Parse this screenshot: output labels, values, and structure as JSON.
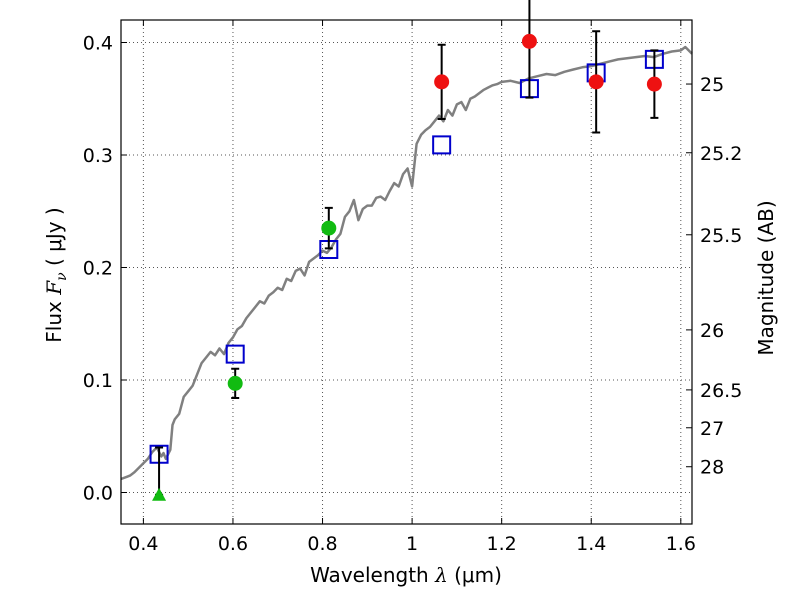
{
  "chart_data": {
    "type": "scatter",
    "xlabel": "Wavelength  λ (μm)",
    "ylabel": "Flux  F_ν ( μJy )",
    "ylabel_parts": {
      "prefix": "Flux  ",
      "symbol": "F",
      "subscript": "ν",
      "unit": " ( μJy )"
    },
    "xlabel_parts": {
      "prefix": "Wavelength  ",
      "symbol": "λ",
      "unit": " (μm)"
    },
    "y2label": "Magnitude (AB)",
    "xlim": [
      0.35,
      1.625
    ],
    "ylim": [
      -0.028,
      0.42
    ],
    "grid": true,
    "x_ticks": [
      {
        "value": 0.4,
        "label": "0.4"
      },
      {
        "value": 0.6,
        "label": "0.6"
      },
      {
        "value": 0.8,
        "label": "0.8"
      },
      {
        "value": 1.0,
        "label": "1"
      },
      {
        "value": 1.2,
        "label": "1.2"
      },
      {
        "value": 1.4,
        "label": "1.4"
      },
      {
        "value": 1.6,
        "label": "1.6"
      }
    ],
    "y_ticks": [
      {
        "value": 0.0,
        "label": "0.0"
      },
      {
        "value": 0.1,
        "label": "0.1"
      },
      {
        "value": 0.2,
        "label": "0.2"
      },
      {
        "value": 0.3,
        "label": "0.3"
      },
      {
        "value": 0.4,
        "label": "0.4"
      }
    ],
    "y2_ticks": [
      {
        "mag": 25,
        "label": "25"
      },
      {
        "mag": 25.2,
        "label": "25.2"
      },
      {
        "mag": 25.5,
        "label": "25.5"
      },
      {
        "mag": 26,
        "label": "26"
      },
      {
        "mag": 26.5,
        "label": "26.5"
      },
      {
        "mag": 27,
        "label": "27"
      },
      {
        "mag": 28,
        "label": "28"
      }
    ],
    "colors": {
      "template": "#808080",
      "model": "#0000cc",
      "red": "#ee1111",
      "green": "#11bb11",
      "grid": "#555555",
      "errorbar": "#000000"
    },
    "series": [
      {
        "name": "template spectrum",
        "kind": "line",
        "x": [
          0.35,
          0.37,
          0.38,
          0.39,
          0.4,
          0.41,
          0.42,
          0.43,
          0.44,
          0.445,
          0.45,
          0.46,
          0.465,
          0.47,
          0.48,
          0.49,
          0.5,
          0.51,
          0.52,
          0.53,
          0.54,
          0.55,
          0.56,
          0.57,
          0.58,
          0.59,
          0.6,
          0.61,
          0.62,
          0.63,
          0.64,
          0.65,
          0.66,
          0.67,
          0.68,
          0.69,
          0.7,
          0.71,
          0.72,
          0.73,
          0.74,
          0.75,
          0.76,
          0.77,
          0.78,
          0.79,
          0.8,
          0.81,
          0.82,
          0.83,
          0.84,
          0.85,
          0.86,
          0.87,
          0.88,
          0.89,
          0.9,
          0.91,
          0.92,
          0.93,
          0.94,
          0.95,
          0.96,
          0.97,
          0.98,
          0.99,
          1.0,
          1.01,
          1.02,
          1.03,
          1.04,
          1.05,
          1.06,
          1.07,
          1.08,
          1.09,
          1.1,
          1.11,
          1.12,
          1.13,
          1.14,
          1.15,
          1.16,
          1.17,
          1.18,
          1.19,
          1.2,
          1.22,
          1.24,
          1.26,
          1.28,
          1.3,
          1.32,
          1.34,
          1.36,
          1.38,
          1.4,
          1.42,
          1.44,
          1.46,
          1.48,
          1.5,
          1.52,
          1.54,
          1.56,
          1.58,
          1.6,
          1.61,
          1.625
        ],
        "y": [
          0.012,
          0.015,
          0.018,
          0.022,
          0.026,
          0.03,
          0.036,
          0.04,
          0.032,
          0.035,
          0.03,
          0.038,
          0.06,
          0.065,
          0.07,
          0.085,
          0.09,
          0.095,
          0.105,
          0.115,
          0.12,
          0.125,
          0.122,
          0.128,
          0.123,
          0.133,
          0.138,
          0.145,
          0.148,
          0.155,
          0.16,
          0.165,
          0.17,
          0.168,
          0.175,
          0.178,
          0.182,
          0.18,
          0.19,
          0.188,
          0.197,
          0.199,
          0.193,
          0.205,
          0.208,
          0.211,
          0.215,
          0.213,
          0.218,
          0.225,
          0.23,
          0.245,
          0.25,
          0.26,
          0.242,
          0.252,
          0.255,
          0.255,
          0.262,
          0.263,
          0.26,
          0.268,
          0.275,
          0.272,
          0.283,
          0.288,
          0.272,
          0.31,
          0.318,
          0.322,
          0.325,
          0.33,
          0.335,
          0.33,
          0.34,
          0.335,
          0.345,
          0.347,
          0.34,
          0.35,
          0.352,
          0.355,
          0.358,
          0.36,
          0.362,
          0.363,
          0.365,
          0.366,
          0.364,
          0.368,
          0.37,
          0.372,
          0.371,
          0.374,
          0.376,
          0.378,
          0.379,
          0.381,
          0.383,
          0.385,
          0.386,
          0.387,
          0.388,
          0.387,
          0.39,
          0.392,
          0.393,
          0.396,
          0.39
        ]
      },
      {
        "name": "model photometry",
        "kind": "open-square",
        "x": [
          0.435,
          0.605,
          0.814,
          1.066,
          1.262,
          1.411,
          1.541
        ],
        "y": [
          0.034,
          0.123,
          0.216,
          0.309,
          0.359,
          0.373,
          0.385
        ]
      },
      {
        "name": "observed (red)",
        "kind": "filled-circle",
        "x": [
          1.066,
          1.262,
          1.411,
          1.541
        ],
        "y": [
          0.365,
          0.401,
          0.365,
          0.363
        ],
        "yerr": [
          0.033,
          0.05,
          0.045,
          0.03
        ]
      },
      {
        "name": "observed (green)",
        "kind": "filled-circle",
        "x": [
          0.605,
          0.814
        ],
        "y": [
          0.097,
          0.235
        ],
        "yerr": [
          0.013,
          0.018
        ]
      },
      {
        "name": "upper limit",
        "kind": "triangle",
        "x": [
          0.435
        ],
        "y": [
          -0.002
        ],
        "errbar_top": [
          0.04
        ]
      }
    ]
  }
}
